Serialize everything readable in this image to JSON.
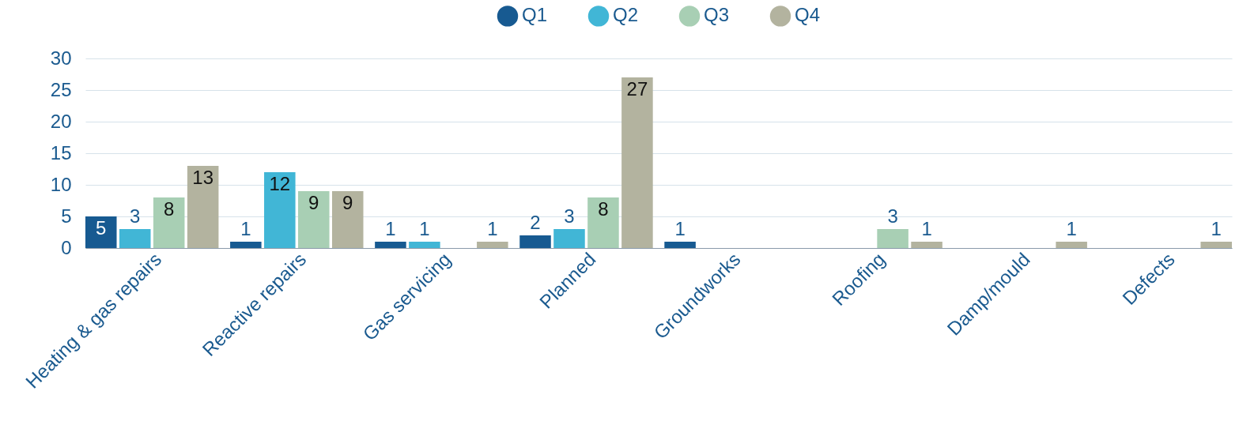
{
  "chart_data": {
    "type": "bar",
    "categories": [
      "Heating & gas repairs",
      "Reactive repairs",
      "Gas servicing",
      "Planned",
      "Groundworks",
      "Roofing",
      "Damp/mould",
      "Defects"
    ],
    "series": [
      {
        "name": "Q1",
        "color": "#175a91",
        "values": [
          5,
          1,
          1,
          2,
          1,
          null,
          null,
          null
        ]
      },
      {
        "name": "Q2",
        "color": "#41b6d6",
        "values": [
          3,
          12,
          1,
          3,
          null,
          null,
          null,
          null
        ]
      },
      {
        "name": "Q3",
        "color": "#a8cfb4",
        "values": [
          8,
          9,
          null,
          8,
          null,
          3,
          null,
          null
        ]
      },
      {
        "name": "Q4",
        "color": "#b3b39f",
        "values": [
          13,
          9,
          1,
          27,
          null,
          1,
          1,
          1
        ]
      }
    ],
    "ylim": [
      0,
      30
    ],
    "yticks": [
      0,
      5,
      10,
      15,
      20,
      25,
      30
    ],
    "grid": "y",
    "legend": "top",
    "data_labels": true
  }
}
